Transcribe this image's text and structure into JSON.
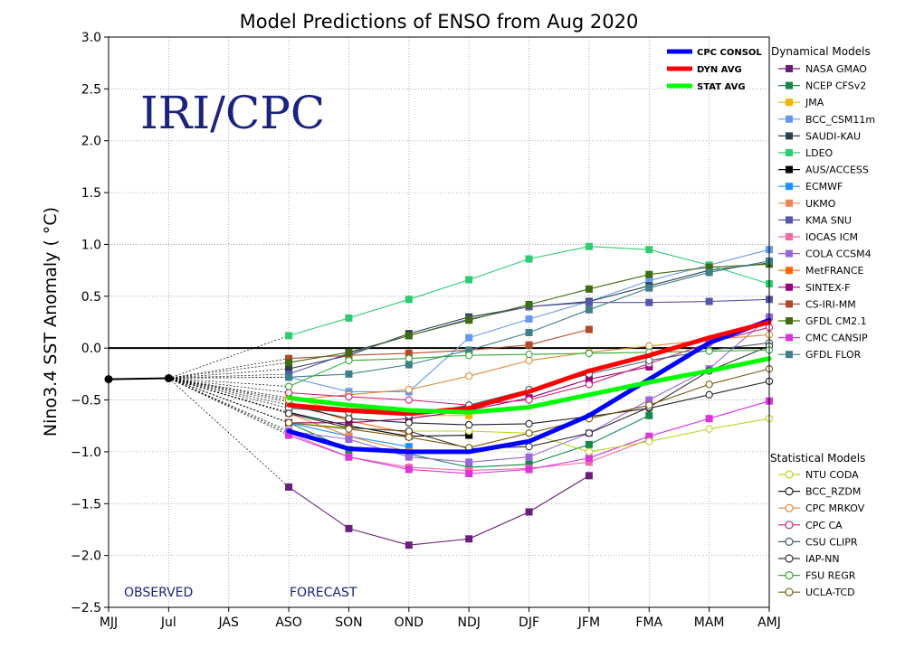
{
  "chart_data": {
    "type": "line",
    "title": "Model Predictions of ENSO from Aug 2020",
    "ylabel": "Nino3.4 SST Anomaly ( °C)",
    "xlabel": "",
    "watermark": "IRI/CPC",
    "categories": [
      "MJJ",
      "Jul",
      "JAS",
      "ASO",
      "SON",
      "OND",
      "NDJ",
      "DJF",
      "JFM",
      "FMA",
      "MAM",
      "AMJ"
    ],
    "ylim": [
      -2.5,
      3.0
    ],
    "yticks": [
      3.0,
      2.5,
      2.0,
      1.5,
      1.0,
      0.5,
      0.0,
      -0.5,
      -1.0,
      -1.5,
      -2.0,
      -2.5
    ],
    "ytick_labels": [
      "3.0",
      "2.5",
      "2.0",
      "1.5",
      "1.0",
      "0.5",
      "0.0",
      "−0.5",
      "−1.0",
      "−1.5",
      "−2.0",
      "−2.5"
    ],
    "grid": true,
    "annotations": {
      "observed": "OBSERVED",
      "forecast": "FORECAST"
    },
    "observed": {
      "x": [
        0,
        1
      ],
      "values": [
        -0.3,
        -0.29
      ],
      "color": "#000000"
    },
    "consensus": [
      {
        "name": "CPC CONSOL",
        "color": "#0000ff",
        "values": [
          -0.8,
          -0.97,
          -1.0,
          -1.0,
          -0.9,
          -0.65,
          -0.3,
          0.05,
          0.27
        ]
      },
      {
        "name": "DYN AVG",
        "color": "#ff0000",
        "values": [
          -0.55,
          -0.6,
          -0.63,
          -0.58,
          -0.42,
          -0.22,
          -0.07,
          0.1,
          0.25
        ]
      },
      {
        "name": "STAT AVG",
        "color": "#00ff00",
        "values": [
          -0.48,
          -0.55,
          -0.6,
          -0.62,
          -0.57,
          -0.45,
          -0.33,
          -0.22,
          -0.1
        ]
      }
    ],
    "legend_titles": {
      "dynamical": "Dynamical Models",
      "statistical": "Statistical Models"
    },
    "dynamical_models": [
      {
        "name": "NASA GMAO",
        "color": "#6b1d7a",
        "values": [
          -1.34,
          -1.74,
          -1.9,
          -1.84,
          -1.58,
          -1.23,
          null,
          null,
          null
        ]
      },
      {
        "name": "NCEP CFSv2",
        "color": "#15884a",
        "values": [
          -0.72,
          -0.98,
          -1.02,
          -1.15,
          -1.12,
          -0.93,
          -0.65,
          null,
          null
        ]
      },
      {
        "name": "JMA",
        "color": "#f4b400",
        "values": [
          -0.48,
          -0.62,
          -0.65,
          -0.65,
          null,
          null,
          null,
          null,
          null
        ]
      },
      {
        "name": "BCC_CSM11m",
        "color": "#6699ee",
        "values": [
          -0.28,
          -0.42,
          -0.42,
          0.1,
          0.28,
          0.45,
          0.65,
          0.8,
          0.95
        ]
      },
      {
        "name": "SAUDI-KAU",
        "color": "#2b4050",
        "values": [
          -0.2,
          -0.07,
          0.14,
          0.3,
          0.4,
          0.45,
          0.6,
          0.75,
          0.82
        ]
      },
      {
        "name": "LDEO",
        "color": "#2ecc71",
        "values": [
          0.12,
          0.29,
          0.47,
          0.66,
          0.86,
          0.98,
          0.95,
          0.8,
          0.62
        ]
      },
      {
        "name": "AUS/ACCESS",
        "color": "#000000",
        "values": [
          -0.62,
          -0.75,
          -0.85,
          -0.84,
          null,
          null,
          null,
          null,
          null
        ]
      },
      {
        "name": "ECMWF",
        "color": "#1e90ff",
        "values": [
          -0.72,
          -0.85,
          -0.95,
          null,
          null,
          null,
          null,
          null,
          null
        ]
      },
      {
        "name": "UKMO",
        "color": "#ee8855",
        "values": [
          -0.63,
          -0.85,
          -1.0,
          null,
          null,
          null,
          null,
          null,
          null
        ]
      },
      {
        "name": "KMA SNU",
        "color": "#5555aa",
        "values": [
          -0.25,
          -0.05,
          0.12,
          0.28,
          0.4,
          0.44,
          0.44,
          0.45,
          0.47
        ]
      },
      {
        "name": "IOCAS ICM",
        "color": "#f06aa8",
        "values": [
          -0.82,
          -1.05,
          -1.15,
          -1.18,
          -1.16,
          -1.1,
          -0.88,
          null,
          null
        ]
      },
      {
        "name": "COLA CCSM4",
        "color": "#9966dd",
        "values": [
          -0.8,
          -0.88,
          -1.05,
          -1.1,
          -1.05,
          -0.82,
          -0.5,
          -0.2,
          0.3
        ]
      },
      {
        "name": "MetFRANCE",
        "color": "#ff6600",
        "values": [
          -0.52,
          -0.7,
          -0.82,
          null,
          null,
          null,
          null,
          null,
          null
        ]
      },
      {
        "name": "SINTEX-F",
        "color": "#99007a",
        "values": [
          -0.72,
          -0.72,
          -0.68,
          -0.6,
          -0.48,
          -0.3,
          -0.18,
          null,
          null
        ]
      },
      {
        "name": "CS-IRI-MM",
        "color": "#b04a2a",
        "values": [
          -0.1,
          -0.07,
          -0.05,
          -0.02,
          0.03,
          0.18,
          null,
          null,
          null
        ]
      },
      {
        "name": "GFDL CM2.1",
        "color": "#3f6b12",
        "values": [
          -0.14,
          -0.04,
          0.12,
          0.27,
          0.42,
          0.57,
          0.71,
          0.78,
          0.81
        ]
      },
      {
        "name": "CMC CANSIP",
        "color": "#dd33dd",
        "values": [
          -0.84,
          -1.05,
          -1.17,
          -1.21,
          -1.17,
          -1.06,
          -0.85,
          -0.68,
          -0.51
        ]
      },
      {
        "name": "GFDL FLOR",
        "color": "#3f7f8a",
        "values": [
          -0.28,
          -0.25,
          -0.16,
          -0.02,
          0.15,
          0.37,
          0.58,
          0.73,
          0.84
        ]
      }
    ],
    "statistical_models": [
      {
        "name": "NTU CODA",
        "color": "#b8d820",
        "values": [
          -0.72,
          -0.77,
          -0.8,
          -0.8,
          -0.82,
          -1.0,
          -0.9,
          -0.78,
          -0.68
        ]
      },
      {
        "name": "BCC_RZDM",
        "color": "#222222",
        "values": [
          -0.55,
          -0.68,
          -0.72,
          -0.74,
          -0.73,
          -0.66,
          -0.58,
          -0.45,
          -0.32
        ]
      },
      {
        "name": "CPC MRKOV",
        "color": "#e08a30",
        "values": [
          -0.5,
          -0.45,
          -0.4,
          -0.27,
          -0.12,
          -0.04,
          0.02,
          0.08,
          0.13
        ]
      },
      {
        "name": "CPC CA",
        "color": "#cc2277",
        "values": [
          -0.43,
          -0.47,
          -0.5,
          -0.55,
          -0.5,
          -0.35,
          -0.15,
          0.05,
          0.2
        ]
      },
      {
        "name": "CSU CLIPR",
        "color": "#3d6068",
        "values": [
          -0.58,
          -0.62,
          -0.65,
          -0.55,
          -0.4,
          -0.25,
          -0.12,
          -0.02,
          0.05
        ]
      },
      {
        "name": "IAP-NN",
        "color": "#333333",
        "values": [
          -0.63,
          -0.77,
          -0.8,
          -0.97,
          -0.95,
          -0.82,
          -0.57,
          -0.22,
          0.02
        ]
      },
      {
        "name": "FSU REGR",
        "color": "#33aa33",
        "values": [
          -0.37,
          -0.12,
          -0.1,
          -0.07,
          -0.06,
          -0.05,
          -0.04,
          -0.03,
          -0.02
        ]
      },
      {
        "name": "UCLA-TCD",
        "color": "#7a5a10",
        "values": [
          -0.72,
          -0.78,
          -0.86,
          -0.96,
          -0.82,
          -0.68,
          -0.55,
          -0.35,
          -0.2
        ]
      }
    ]
  }
}
